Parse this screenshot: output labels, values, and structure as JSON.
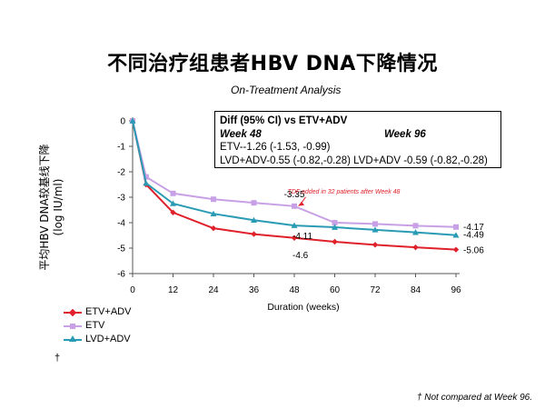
{
  "title": "不同治疗组患者HBV DNA下降情况",
  "subtitle": "On-Treatment Analysis",
  "stats": {
    "header": "Diff (95% CI) vs ETV+ADV",
    "week48_label": "Week 48",
    "week96_label": "Week 96",
    "line1": "ETV--1.26 (-1.53, -0.99)",
    "line2": "LVD+ADV-0.55 (-0.82,-0.28) LVD+ADV -0.59 (-0.82,-0.28)"
  },
  "dagger": "†",
  "footnote": "† Not compared  at Week 96.",
  "colors": {
    "etv_adv": "#e0202a",
    "etv": "#c8a0e6",
    "lvd_adv": "#2a9bb5",
    "axis": "#555555",
    "annotation": "#e0202a"
  },
  "chart_data": {
    "type": "line",
    "ylabel": "平均HBV DNA较基线下降\n(log IU/ml)",
    "xlabel": "Duration (weeks)",
    "x": [
      0,
      4,
      12,
      24,
      36,
      48,
      60,
      72,
      84,
      96
    ],
    "xticks": [
      "0",
      "12",
      "24",
      "36",
      "48",
      "60",
      "72",
      "84",
      "96"
    ],
    "yticks": [
      "0",
      "-1",
      "-2",
      "-3",
      "-4",
      "-5",
      "-6"
    ],
    "ylim": [
      -6,
      0
    ],
    "xlim": [
      0,
      96
    ],
    "series": [
      {
        "name": "ETV+ADV",
        "marker": "diamond",
        "values": [
          0,
          -2.5,
          -3.6,
          -4.22,
          -4.45,
          -4.6,
          -4.75,
          -4.87,
          -4.97,
          -5.06
        ]
      },
      {
        "name": "ETV",
        "marker": "square",
        "values": [
          0,
          -2.2,
          -2.85,
          -3.08,
          -3.22,
          -3.35,
          -4.0,
          -4.05,
          -4.12,
          -4.17
        ]
      },
      {
        "name": "LVD+ADV",
        "marker": "triangle",
        "values": [
          0,
          -2.45,
          -3.25,
          -3.65,
          -3.9,
          -4.11,
          -4.18,
          -4.28,
          -4.38,
          -4.49
        ]
      }
    ],
    "data_labels": [
      {
        "series": "ETV",
        "x": 48,
        "text": "-3.35"
      },
      {
        "series": "LVD+ADV",
        "x": 48,
        "text": "-4.11"
      },
      {
        "series": "ETV+ADV",
        "x": 48,
        "text": "-4.6"
      },
      {
        "series": "ETV",
        "x": 96,
        "text": "-4.17"
      },
      {
        "series": "LVD+ADV",
        "x": 96,
        "text": "-4.49"
      },
      {
        "series": "ETV+ADV",
        "x": 96,
        "text": "-5.06"
      }
    ],
    "annotation": {
      "text": "TDF added in 32 patients after Week 48"
    }
  }
}
